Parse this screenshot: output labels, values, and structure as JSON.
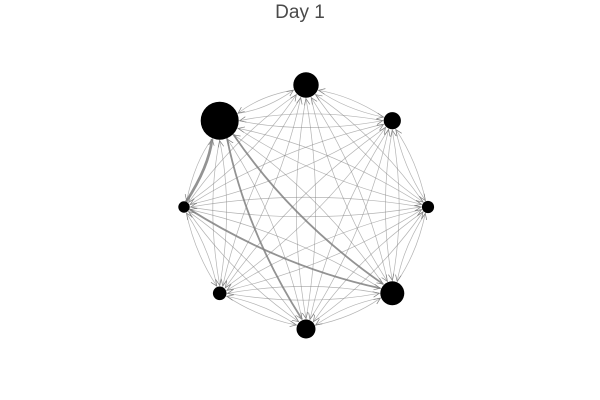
{
  "title": "Day 1",
  "colors": {
    "background": "#ffffff",
    "node": "#000000",
    "edge": "#808080",
    "title": "#4a4a4a"
  },
  "graph": {
    "layout": "circle",
    "directed": true,
    "complete": true,
    "nodes": [
      {
        "id": "n0",
        "relative_size": 1.0
      },
      {
        "id": "n1",
        "relative_size": 0.67
      },
      {
        "id": "n2",
        "relative_size": 0.45
      },
      {
        "id": "n3",
        "relative_size": 0.3
      },
      {
        "id": "n4",
        "relative_size": 0.32
      },
      {
        "id": "n5",
        "relative_size": 0.36
      },
      {
        "id": "n6",
        "relative_size": 0.63
      },
      {
        "id": "n7",
        "relative_size": 0.5
      }
    ],
    "emphasized_edges": [
      {
        "from": "n3",
        "to": "n0",
        "weight": 3
      },
      {
        "from": "n0",
        "to": "n6",
        "weight": 2
      },
      {
        "from": "n0",
        "to": "n7",
        "weight": 2
      },
      {
        "from": "n3",
        "to": "n6",
        "weight": 2
      }
    ]
  }
}
